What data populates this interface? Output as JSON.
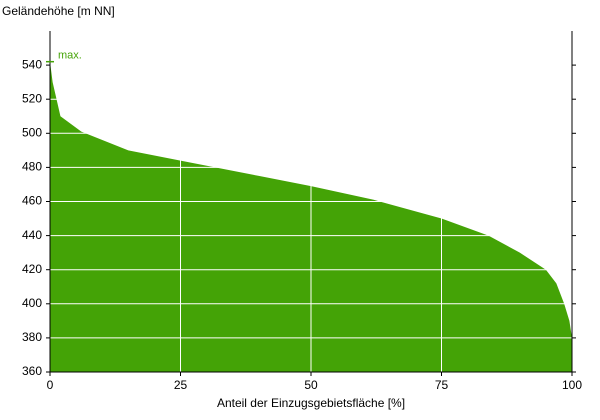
{
  "chart_data": {
    "type": "area",
    "y_label": "Geländehöhe [m NN]",
    "x_label": "Anteil der Einzugsgebietsfläche [%]",
    "color": "#44a306",
    "x": [
      0,
      0.5,
      2,
      6,
      15,
      25,
      40,
      50,
      62,
      75,
      84,
      90,
      95,
      97,
      98.5,
      99.5,
      100
    ],
    "values": [
      542,
      530,
      510,
      501,
      490,
      484,
      475,
      469,
      461,
      450,
      440,
      430,
      420,
      412,
      400,
      390,
      380
    ],
    "xlim": [
      0,
      100
    ],
    "xticks": [
      0,
      25,
      50,
      75,
      100
    ],
    "ylim": [
      360,
      560
    ],
    "yticks": [
      360,
      380,
      400,
      420,
      440,
      460,
      480,
      500,
      520,
      540
    ],
    "grid": true,
    "annotation": {
      "text": "max.",
      "value": 542
    }
  }
}
